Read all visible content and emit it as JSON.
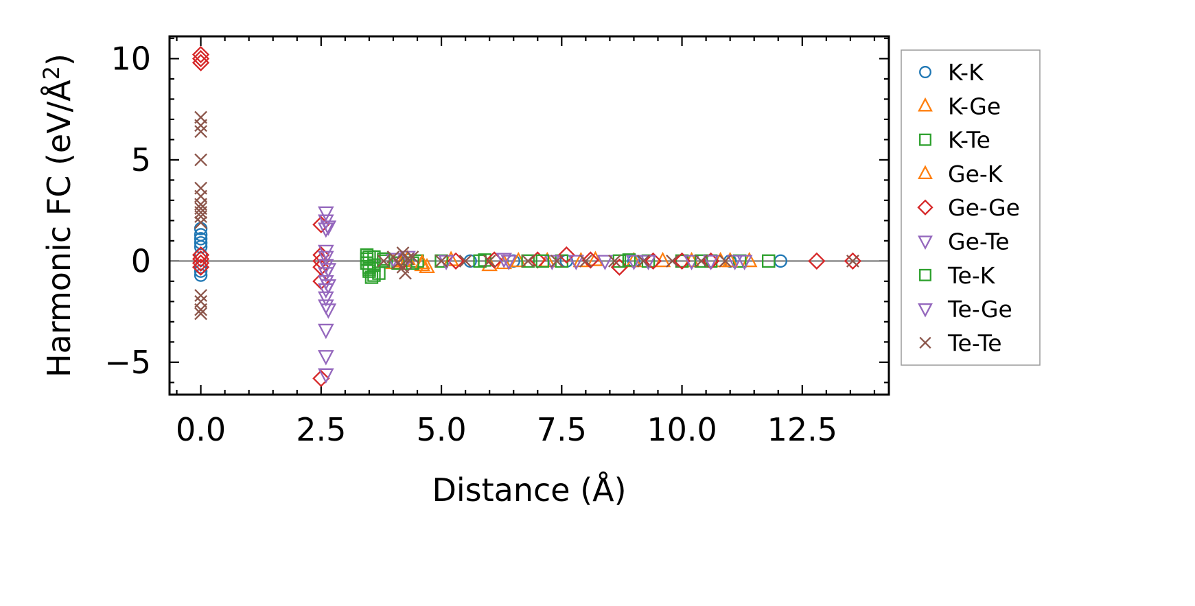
{
  "chart_data": {
    "type": "scatter",
    "title": "",
    "xlabel": "Distance (Å)",
    "ylabel": "Harmonic FC (eV/Å",
    "ylabel_sup": "2",
    "ylabel_close": ")",
    "xlim": [
      -0.65,
      14.3
    ],
    "ylim": [
      -6.6,
      11.1
    ],
    "xticks": [
      0.0,
      2.5,
      5.0,
      7.5,
      10.0,
      12.5
    ],
    "xtick_labels": [
      "0.0",
      "2.5",
      "5.0",
      "7.5",
      "10.0",
      "12.5"
    ],
    "yticks": [
      -5,
      0,
      5,
      10
    ],
    "ytick_labels": [
      "−5",
      "0",
      "5",
      "10"
    ],
    "zero_line": true,
    "grid": false,
    "legend_position": "outside-right",
    "series": [
      {
        "name": "K-K",
        "marker": "circle",
        "color": "#1f77b4",
        "points": [
          [
            0,
            1.6
          ],
          [
            0,
            1.3
          ],
          [
            0,
            1.1
          ],
          [
            0,
            0.9
          ],
          [
            0,
            0.7
          ],
          [
            0,
            0.3
          ],
          [
            0,
            -0.3
          ],
          [
            0,
            -0.5
          ],
          [
            0,
            -0.7
          ],
          [
            4.3,
            0.05
          ],
          [
            5.6,
            0.0
          ],
          [
            6.5,
            0.0
          ],
          [
            7.6,
            0.0
          ],
          [
            9.0,
            0.0
          ],
          [
            10.0,
            0.0
          ],
          [
            11.0,
            0.0
          ],
          [
            12.05,
            0.0
          ]
        ]
      },
      {
        "name": "K-Ge",
        "marker": "triangle-up",
        "color": "#ff7f0e",
        "points": [
          [
            4.0,
            -0.1
          ],
          [
            4.3,
            0.1
          ],
          [
            4.6,
            -0.2
          ],
          [
            4.7,
            -0.3
          ],
          [
            5.2,
            0.05
          ],
          [
            6.0,
            -0.2
          ],
          [
            6.6,
            0.0
          ],
          [
            7.2,
            0.0
          ],
          [
            8.2,
            0.05
          ],
          [
            9.0,
            0.0
          ],
          [
            10.2,
            0.0
          ],
          [
            10.8,
            0.0
          ],
          [
            11.4,
            0.0
          ]
        ]
      },
      {
        "name": "K-Te",
        "marker": "square",
        "color": "#2ca02c",
        "points": [
          [
            3.45,
            0.3
          ],
          [
            3.45,
            0.1
          ],
          [
            3.45,
            -0.1
          ],
          [
            3.5,
            -0.3
          ],
          [
            3.5,
            -0.5
          ],
          [
            3.55,
            -0.8
          ],
          [
            3.6,
            0.2
          ],
          [
            3.6,
            -0.2
          ],
          [
            3.7,
            -0.6
          ],
          [
            3.8,
            0.0
          ],
          [
            4.1,
            -0.1
          ],
          [
            4.5,
            0.0
          ],
          [
            5.0,
            0.0
          ],
          [
            5.9,
            0.05
          ],
          [
            6.8,
            0.0
          ],
          [
            7.5,
            0.0
          ],
          [
            8.7,
            0.0
          ],
          [
            9.3,
            0.0
          ],
          [
            10.0,
            0.0
          ],
          [
            10.6,
            0.0
          ],
          [
            11.2,
            0.0
          ],
          [
            11.8,
            0.0
          ]
        ]
      },
      {
        "name": "Ge-K",
        "marker": "triangle-up",
        "color": "#ff7f0e",
        "points": [
          [
            4.2,
            0.0
          ],
          [
            4.6,
            -0.1
          ],
          [
            6.3,
            -0.1
          ],
          [
            7.9,
            0.0
          ],
          [
            9.6,
            0.0
          ],
          [
            11.0,
            0.0
          ]
        ]
      },
      {
        "name": "Ge-Ge",
        "marker": "diamond",
        "color": "#d62728",
        "points": [
          [
            0,
            10.2
          ],
          [
            0,
            10.0
          ],
          [
            0,
            9.8
          ],
          [
            0,
            0.3
          ],
          [
            0,
            0.1
          ],
          [
            0,
            -0.1
          ],
          [
            0,
            -0.3
          ],
          [
            2.5,
            1.8
          ],
          [
            2.5,
            0.3
          ],
          [
            2.5,
            0.0
          ],
          [
            2.5,
            -0.3
          ],
          [
            2.5,
            -1.0
          ],
          [
            2.5,
            -5.8
          ],
          [
            4.2,
            0.0
          ],
          [
            5.3,
            0.0
          ],
          [
            6.1,
            0.05
          ],
          [
            7.0,
            0.05
          ],
          [
            7.6,
            0.3
          ],
          [
            8.1,
            0.05
          ],
          [
            8.7,
            -0.3
          ],
          [
            9.4,
            0.0
          ],
          [
            10.0,
            0.0
          ],
          [
            10.6,
            0.0
          ],
          [
            12.8,
            0.0
          ],
          [
            13.55,
            0.0
          ]
        ]
      },
      {
        "name": "Ge-Te",
        "marker": "triangle-down",
        "color": "#9467bd",
        "points": [
          [
            2.6,
            2.4
          ],
          [
            2.6,
            2.0
          ],
          [
            2.6,
            1.6
          ],
          [
            2.6,
            0.5
          ],
          [
            2.6,
            0.2
          ],
          [
            2.6,
            -0.2
          ],
          [
            2.6,
            -0.6
          ],
          [
            2.6,
            -1.0
          ],
          [
            2.6,
            -1.4
          ],
          [
            2.6,
            -1.8
          ],
          [
            2.6,
            -2.2
          ],
          [
            2.6,
            -3.4
          ],
          [
            2.6,
            -4.7
          ],
          [
            2.6,
            -5.6
          ],
          [
            4.0,
            0.1
          ],
          [
            5.1,
            0.0
          ],
          [
            6.3,
            0.1
          ],
          [
            7.3,
            0.0
          ],
          [
            8.4,
            0.0
          ],
          [
            9.3,
            0.0
          ],
          [
            10.2,
            0.0
          ],
          [
            11.1,
            0.0
          ]
        ]
      },
      {
        "name": "Te-K",
        "marker": "square",
        "color": "#2ca02c",
        "points": [
          [
            3.5,
            0.2
          ],
          [
            3.5,
            -0.4
          ],
          [
            3.6,
            -0.7
          ],
          [
            3.8,
            0.1
          ],
          [
            4.4,
            -0.1
          ],
          [
            5.8,
            0.0
          ],
          [
            7.1,
            0.0
          ],
          [
            8.9,
            0.05
          ],
          [
            10.4,
            0.0
          ]
        ]
      },
      {
        "name": "Te-Ge",
        "marker": "triangle-down",
        "color": "#9467bd",
        "points": [
          [
            2.65,
            1.7
          ],
          [
            2.65,
            -0.4
          ],
          [
            2.65,
            -1.2
          ],
          [
            2.65,
            -2.4
          ],
          [
            4.3,
            0.2
          ],
          [
            6.4,
            0.0
          ],
          [
            7.8,
            0.0
          ],
          [
            9.0,
            0.0
          ],
          [
            10.6,
            0.0
          ],
          [
            11.3,
            0.0
          ]
        ]
      },
      {
        "name": "Te-Te",
        "marker": "x",
        "color": "#8c564b",
        "points": [
          [
            0,
            7.1
          ],
          [
            0,
            6.7
          ],
          [
            0,
            6.4
          ],
          [
            0,
            5.0
          ],
          [
            0,
            3.6
          ],
          [
            0,
            3.2
          ],
          [
            0,
            2.8
          ],
          [
            0,
            2.6
          ],
          [
            0,
            2.4
          ],
          [
            0,
            2.2
          ],
          [
            0,
            1.9
          ],
          [
            0,
            -1.7
          ],
          [
            0,
            -2.0
          ],
          [
            0,
            -2.4
          ],
          [
            0,
            -2.6
          ],
          [
            3.8,
            0.0
          ],
          [
            4.0,
            0.2
          ],
          [
            4.1,
            -0.1
          ],
          [
            4.2,
            0.4
          ],
          [
            4.2,
            -0.3
          ],
          [
            4.25,
            -0.6
          ],
          [
            4.3,
            0.1
          ],
          [
            4.4,
            0.2
          ],
          [
            5.0,
            0.0
          ],
          [
            5.5,
            0.0
          ],
          [
            6.0,
            0.0
          ],
          [
            6.8,
            0.0
          ],
          [
            7.4,
            0.0
          ],
          [
            8.0,
            0.0
          ],
          [
            8.6,
            0.0
          ],
          [
            9.2,
            0.0
          ],
          [
            9.8,
            0.0
          ],
          [
            10.4,
            0.0
          ],
          [
            10.9,
            0.0
          ],
          [
            13.55,
            0.0
          ]
        ]
      }
    ]
  }
}
